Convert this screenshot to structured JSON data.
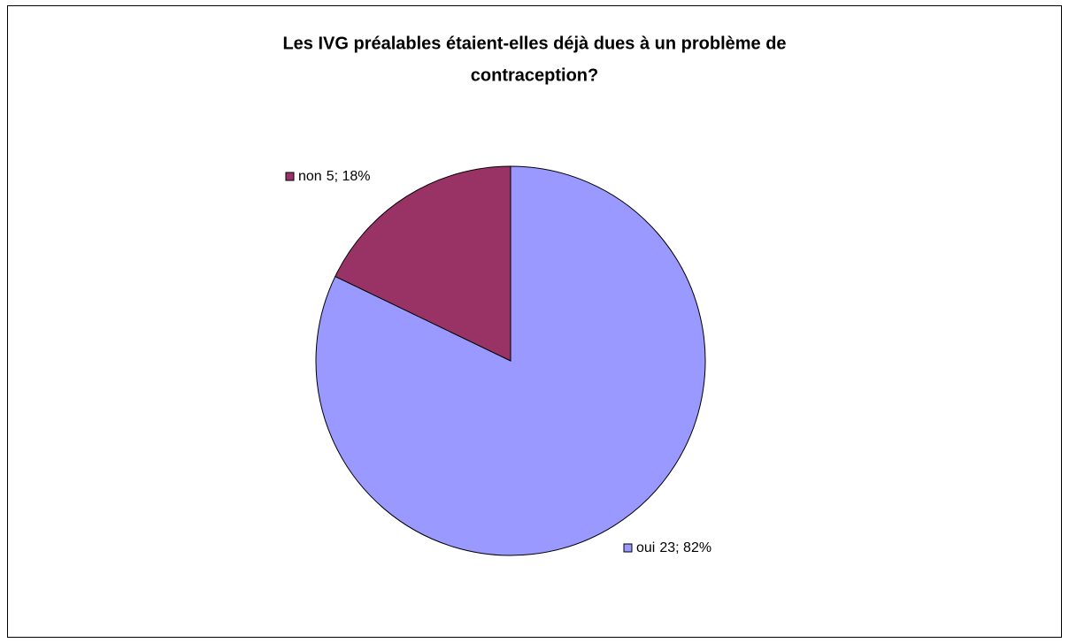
{
  "chart_data": {
    "type": "pie",
    "title": [
      "Les IVG préalables étaient-elles déjà dues à un problème de",
      "contraception?"
    ],
    "categories": [
      "oui",
      "non"
    ],
    "values": [
      23,
      5
    ],
    "value_labels": [
      "23; 82%",
      "5; 18%"
    ],
    "colors": [
      "#9999ff",
      "#993366"
    ]
  }
}
